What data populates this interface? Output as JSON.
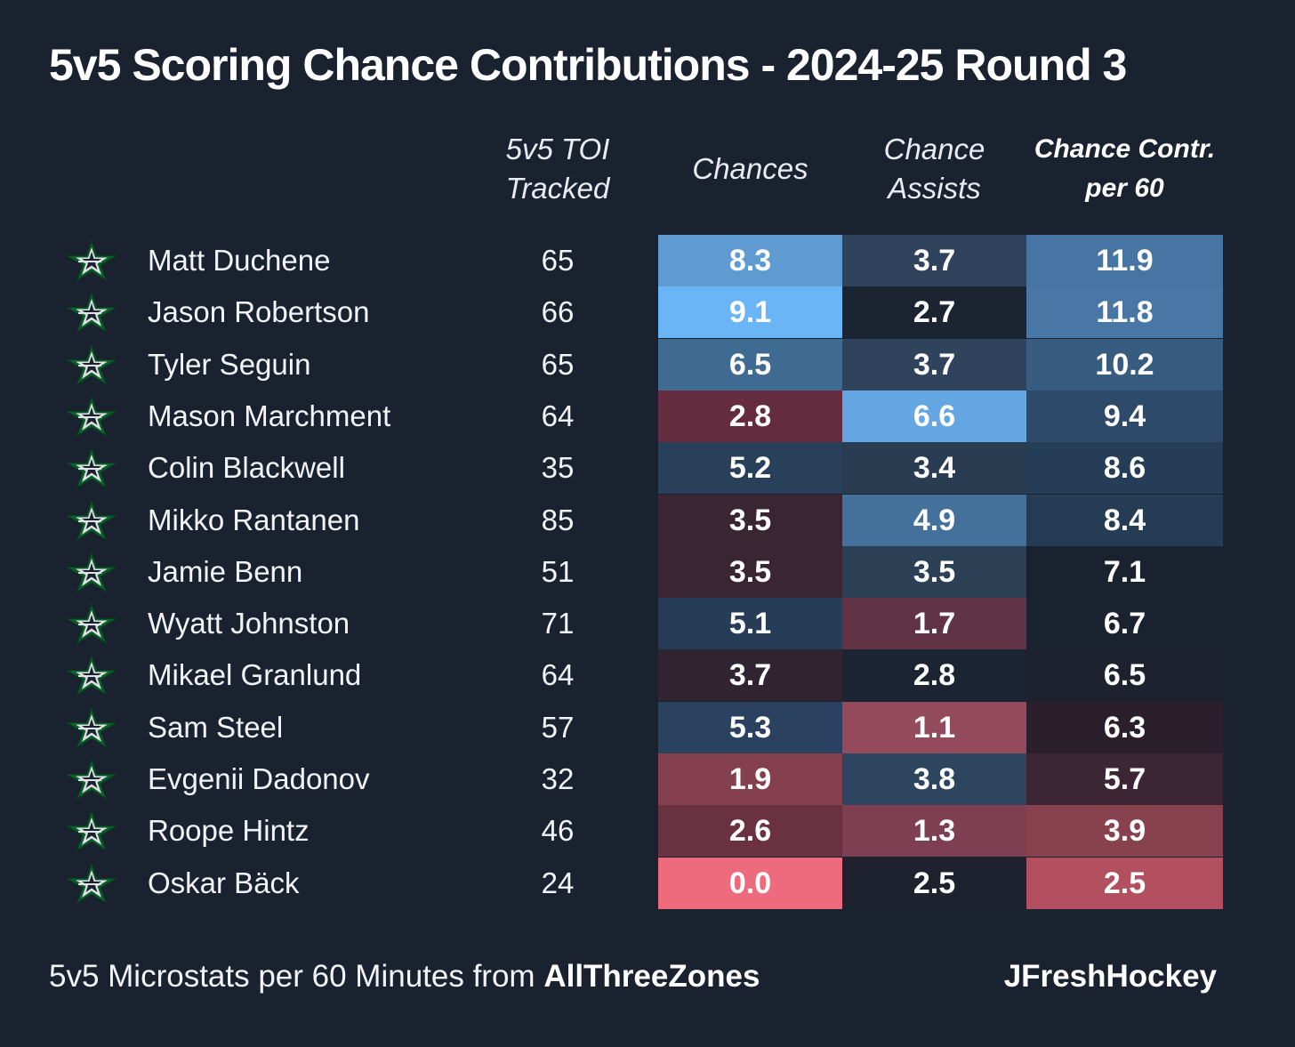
{
  "title": "5v5 Scoring Chance Contributions - 2024-25 Round 3",
  "headers": {
    "toi": [
      "5v5 TOI",
      "Tracked"
    ],
    "chances": [
      "Chances"
    ],
    "assists": [
      "Chance",
      "Assists"
    ],
    "contr": [
      "Chance Contr.",
      "per 60"
    ]
  },
  "footer": {
    "source_prefix": "5v5 Microstats per 60 Minutes from ",
    "source_name": "AllThreeZones",
    "credit": "JFreshHockey"
  },
  "team_logo_icon": "dallas-stars-star-icon",
  "colors": {
    "background": "#1b222f",
    "high": "#66b6f6",
    "mid": "#1b222f",
    "low": "#ee6a7d"
  },
  "chart_data": {
    "type": "table",
    "columns": [
      "5v5 TOI Tracked",
      "Chances",
      "Chance Assists",
      "Chance Contr. per 60"
    ],
    "rows": [
      {
        "player": "Matt Duchene",
        "toi": "65",
        "chances": "8.3",
        "assists": "3.7",
        "contr": "11.9",
        "colors": [
          "#5f9bd0",
          "#2f445c",
          "#4775a3"
        ]
      },
      {
        "player": "Jason Robertson",
        "toi": "66",
        "chances": "9.1",
        "assists": "2.7",
        "contr": "11.8",
        "colors": [
          "#69b5f5",
          "#1c2432",
          "#4876a5"
        ]
      },
      {
        "player": "Tyler Seguin",
        "toi": "65",
        "chances": "6.5",
        "assists": "3.7",
        "contr": "10.2",
        "colors": [
          "#3f6a92",
          "#2f445c",
          "#385c80"
        ]
      },
      {
        "player": "Mason Marchment",
        "toi": "64",
        "chances": "2.8",
        "assists": "6.6",
        "contr": "9.4",
        "colors": [
          "#642c3e",
          "#63a6e1",
          "#2e4a69"
        ]
      },
      {
        "player": "Colin Blackwell",
        "toi": "35",
        "chances": "5.2",
        "assists": "3.4",
        "contr": "8.6",
        "colors": [
          "#284059",
          "#2a3c51",
          "#263d57"
        ]
      },
      {
        "player": "Mikko Rantanen",
        "toi": "85",
        "chances": "3.5",
        "assists": "4.9",
        "contr": "8.4",
        "colors": [
          "#3a2633",
          "#44719c",
          "#263b54"
        ]
      },
      {
        "player": "Jamie Benn",
        "toi": "51",
        "chances": "3.5",
        "assists": "3.5",
        "contr": "7.1",
        "colors": [
          "#3a2633",
          "#2b3f55",
          "#1b222f"
        ]
      },
      {
        "player": "Wyatt Johnston",
        "toi": "71",
        "chances": "5.1",
        "assists": "1.7",
        "contr": "6.7",
        "colors": [
          "#273c56",
          "#5f3344",
          "#1b222f"
        ]
      },
      {
        "player": "Mikael Granlund",
        "toi": "64",
        "chances": "3.7",
        "assists": "2.8",
        "contr": "6.5",
        "colors": [
          "#2f2430",
          "#1a2433",
          "#1e212e"
        ]
      },
      {
        "player": "Sam Steel",
        "toi": "57",
        "chances": "5.3",
        "assists": "1.1",
        "contr": "6.3",
        "colors": [
          "#2a4260",
          "#944a5d",
          "#2a1f2b"
        ]
      },
      {
        "player": "Evgenii Dadonov",
        "toi": "32",
        "chances": "1.9",
        "assists": "3.8",
        "contr": "5.7",
        "colors": [
          "#85404f",
          "#2e4560",
          "#3c2634"
        ]
      },
      {
        "player": "Roope Hintz",
        "toi": "46",
        "chances": "2.6",
        "assists": "1.3",
        "contr": "3.9",
        "colors": [
          "#6a3141",
          "#7d3f51",
          "#88424f"
        ]
      },
      {
        "player": "Oskar Bäck",
        "toi": "24",
        "chances": "0.0",
        "assists": "2.5",
        "contr": "2.5",
        "colors": [
          "#ee6a7d",
          "#1e212e",
          "#b2505f"
        ]
      }
    ]
  }
}
